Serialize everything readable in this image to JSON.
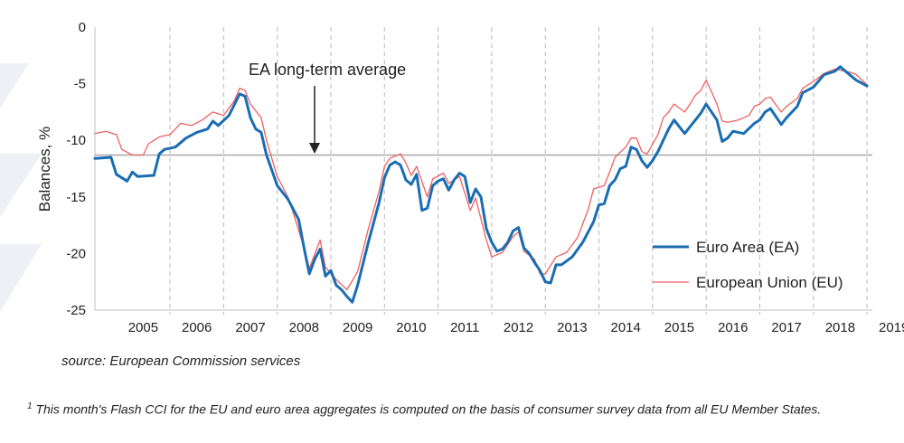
{
  "footer": {
    "source": "source: European Commission services",
    "footnote_mark": "1",
    "footnote": " This month's Flash CCI for the EU and euro area aggregates is computed on the basis of consumer survey data from all EU Member States."
  },
  "chart_data": {
    "type": "line",
    "ylabel": "Balances, %",
    "ylim": [
      -25,
      0
    ],
    "yticks": [
      0,
      -5,
      -10,
      -15,
      -20,
      -25
    ],
    "xlim": [
      2004.6,
      2019.1
    ],
    "years": [
      "2005",
      "2006",
      "2007",
      "2008",
      "2009",
      "2010",
      "2011",
      "2012",
      "2013",
      "2014",
      "2015",
      "2016",
      "2017",
      "2018",
      "2019"
    ],
    "grid": "vertical dashed lines between years",
    "legend_position": "bottom-right",
    "reference_line": {
      "label": "EA long-term average",
      "value": -11.3
    },
    "series": [
      {
        "name": "Euro Area (EA)",
        "color": "#1a6db3",
        "points": [
          [
            2004.6,
            -11.6
          ],
          [
            2004.9,
            -11.5
          ],
          [
            2005.0,
            -13.0
          ],
          [
            2005.2,
            -13.6
          ],
          [
            2005.3,
            -12.8
          ],
          [
            2005.4,
            -13.2
          ],
          [
            2005.7,
            -13.1
          ],
          [
            2005.8,
            -11.2
          ],
          [
            2005.9,
            -10.8
          ],
          [
            2006.1,
            -10.6
          ],
          [
            2006.3,
            -9.8
          ],
          [
            2006.5,
            -9.3
          ],
          [
            2006.7,
            -9.0
          ],
          [
            2006.8,
            -8.3
          ],
          [
            2006.9,
            -8.7
          ],
          [
            2007.1,
            -7.8
          ],
          [
            2007.3,
            -5.9
          ],
          [
            2007.4,
            -6.1
          ],
          [
            2007.5,
            -8.0
          ],
          [
            2007.6,
            -9.0
          ],
          [
            2007.7,
            -9.3
          ],
          [
            2007.8,
            -11.3
          ],
          [
            2008.0,
            -14.0
          ],
          [
            2008.2,
            -15.2
          ],
          [
            2008.4,
            -17.0
          ],
          [
            2008.5,
            -19.5
          ],
          [
            2008.6,
            -21.8
          ],
          [
            2008.7,
            -20.5
          ],
          [
            2008.8,
            -19.6
          ],
          [
            2008.9,
            -22.0
          ],
          [
            2009.0,
            -21.5
          ],
          [
            2009.1,
            -22.8
          ],
          [
            2009.2,
            -23.2
          ],
          [
            2009.3,
            -23.8
          ],
          [
            2009.4,
            -24.3
          ],
          [
            2009.5,
            -22.8
          ],
          [
            2009.7,
            -19.0
          ],
          [
            2009.9,
            -15.5
          ],
          [
            2010.0,
            -13.3
          ],
          [
            2010.1,
            -12.2
          ],
          [
            2010.2,
            -11.9
          ],
          [
            2010.3,
            -12.2
          ],
          [
            2010.4,
            -13.5
          ],
          [
            2010.5,
            -13.9
          ],
          [
            2010.6,
            -13.0
          ],
          [
            2010.7,
            -16.2
          ],
          [
            2010.8,
            -16.0
          ],
          [
            2010.9,
            -14.0
          ],
          [
            2011.0,
            -13.6
          ],
          [
            2011.1,
            -13.4
          ],
          [
            2011.2,
            -14.4
          ],
          [
            2011.3,
            -13.5
          ],
          [
            2011.4,
            -12.9
          ],
          [
            2011.5,
            -13.2
          ],
          [
            2011.6,
            -15.5
          ],
          [
            2011.7,
            -14.3
          ],
          [
            2011.8,
            -15.0
          ],
          [
            2011.9,
            -17.8
          ],
          [
            2012.0,
            -19.0
          ],
          [
            2012.1,
            -19.8
          ],
          [
            2012.2,
            -19.6
          ],
          [
            2012.3,
            -19.0
          ],
          [
            2012.4,
            -18.0
          ],
          [
            2012.5,
            -17.7
          ],
          [
            2012.6,
            -19.5
          ],
          [
            2012.7,
            -20.0
          ],
          [
            2012.8,
            -20.8
          ],
          [
            2012.9,
            -21.5
          ],
          [
            2013.0,
            -22.5
          ],
          [
            2013.1,
            -22.6
          ],
          [
            2013.2,
            -21.0
          ],
          [
            2013.3,
            -21.0
          ],
          [
            2013.5,
            -20.3
          ],
          [
            2013.7,
            -19.0
          ],
          [
            2013.9,
            -17.2
          ],
          [
            2014.0,
            -15.7
          ],
          [
            2014.1,
            -15.6
          ],
          [
            2014.2,
            -14.0
          ],
          [
            2014.3,
            -13.5
          ],
          [
            2014.4,
            -12.5
          ],
          [
            2014.5,
            -12.3
          ],
          [
            2014.6,
            -10.6
          ],
          [
            2014.7,
            -10.8
          ],
          [
            2014.8,
            -11.8
          ],
          [
            2014.9,
            -12.4
          ],
          [
            2015.0,
            -11.8
          ],
          [
            2015.1,
            -11.0
          ],
          [
            2015.3,
            -9.0
          ],
          [
            2015.4,
            -8.2
          ],
          [
            2015.6,
            -9.4
          ],
          [
            2015.7,
            -8.8
          ],
          [
            2015.8,
            -8.2
          ],
          [
            2015.9,
            -7.6
          ],
          [
            2016.0,
            -6.8
          ],
          [
            2016.1,
            -7.5
          ],
          [
            2016.2,
            -8.2
          ],
          [
            2016.3,
            -10.1
          ],
          [
            2016.4,
            -9.8
          ],
          [
            2016.5,
            -9.2
          ],
          [
            2016.7,
            -9.4
          ],
          [
            2016.9,
            -8.5
          ],
          [
            2017.0,
            -8.2
          ],
          [
            2017.1,
            -7.5
          ],
          [
            2017.2,
            -7.2
          ],
          [
            2017.4,
            -8.6
          ],
          [
            2017.5,
            -8.0
          ],
          [
            2017.7,
            -7.0
          ],
          [
            2017.8,
            -5.8
          ],
          [
            2018.0,
            -5.3
          ],
          [
            2018.2,
            -4.2
          ],
          [
            2018.4,
            -3.9
          ],
          [
            2018.5,
            -3.5
          ],
          [
            2018.7,
            -4.3
          ],
          [
            2018.8,
            -4.7
          ],
          [
            2019.0,
            -5.2
          ]
        ]
      },
      {
        "name": "European Union (EU)",
        "color": "#f06060",
        "points": [
          [
            2004.6,
            -9.4
          ],
          [
            2004.8,
            -9.2
          ],
          [
            2005.0,
            -9.5
          ],
          [
            2005.1,
            -10.8
          ],
          [
            2005.3,
            -11.3
          ],
          [
            2005.5,
            -11.3
          ],
          [
            2005.6,
            -10.3
          ],
          [
            2005.8,
            -9.7
          ],
          [
            2006.0,
            -9.5
          ],
          [
            2006.2,
            -8.5
          ],
          [
            2006.4,
            -8.7
          ],
          [
            2006.6,
            -8.2
          ],
          [
            2006.8,
            -7.5
          ],
          [
            2007.0,
            -7.8
          ],
          [
            2007.2,
            -6.5
          ],
          [
            2007.3,
            -5.4
          ],
          [
            2007.4,
            -5.6
          ],
          [
            2007.5,
            -6.8
          ],
          [
            2007.7,
            -8.0
          ],
          [
            2007.8,
            -10.0
          ],
          [
            2008.0,
            -13.2
          ],
          [
            2008.2,
            -15.0
          ],
          [
            2008.3,
            -16.4
          ],
          [
            2008.5,
            -19.5
          ],
          [
            2008.6,
            -21.3
          ],
          [
            2008.8,
            -18.8
          ],
          [
            2008.9,
            -21.2
          ],
          [
            2009.1,
            -22.3
          ],
          [
            2009.3,
            -23.2
          ],
          [
            2009.5,
            -21.6
          ],
          [
            2009.7,
            -17.8
          ],
          [
            2009.9,
            -14.5
          ],
          [
            2010.0,
            -12.3
          ],
          [
            2010.1,
            -11.6
          ],
          [
            2010.3,
            -11.2
          ],
          [
            2010.4,
            -12.0
          ],
          [
            2010.5,
            -13.1
          ],
          [
            2010.6,
            -12.3
          ],
          [
            2010.8,
            -15.0
          ],
          [
            2010.9,
            -13.4
          ],
          [
            2011.1,
            -12.9
          ],
          [
            2011.2,
            -13.8
          ],
          [
            2011.4,
            -13.2
          ],
          [
            2011.6,
            -16.2
          ],
          [
            2011.7,
            -15.1
          ],
          [
            2011.9,
            -18.8
          ],
          [
            2012.0,
            -20.3
          ],
          [
            2012.2,
            -19.9
          ],
          [
            2012.4,
            -18.5
          ],
          [
            2012.5,
            -18.1
          ],
          [
            2012.6,
            -19.8
          ],
          [
            2012.8,
            -20.5
          ],
          [
            2012.9,
            -21.8
          ],
          [
            2013.0,
            -21.8
          ],
          [
            2013.2,
            -20.3
          ],
          [
            2013.4,
            -19.9
          ],
          [
            2013.6,
            -18.6
          ],
          [
            2013.8,
            -16.1
          ],
          [
            2013.9,
            -14.3
          ],
          [
            2014.1,
            -14.0
          ],
          [
            2014.2,
            -12.8
          ],
          [
            2014.3,
            -11.5
          ],
          [
            2014.5,
            -10.6
          ],
          [
            2014.6,
            -9.8
          ],
          [
            2014.7,
            -9.8
          ],
          [
            2014.8,
            -11.0
          ],
          [
            2014.9,
            -11.2
          ],
          [
            2015.1,
            -9.5
          ],
          [
            2015.2,
            -8.0
          ],
          [
            2015.3,
            -7.5
          ],
          [
            2015.4,
            -6.8
          ],
          [
            2015.6,
            -7.5
          ],
          [
            2015.7,
            -6.8
          ],
          [
            2015.8,
            -6.0
          ],
          [
            2015.9,
            -5.6
          ],
          [
            2016.0,
            -4.7
          ],
          [
            2016.1,
            -5.7
          ],
          [
            2016.2,
            -6.8
          ],
          [
            2016.3,
            -8.3
          ],
          [
            2016.4,
            -8.4
          ],
          [
            2016.6,
            -8.2
          ],
          [
            2016.8,
            -7.8
          ],
          [
            2016.9,
            -7.0
          ],
          [
            2017.0,
            -6.8
          ],
          [
            2017.1,
            -6.3
          ],
          [
            2017.2,
            -6.2
          ],
          [
            2017.4,
            -7.5
          ],
          [
            2017.5,
            -7.0
          ],
          [
            2017.7,
            -6.3
          ],
          [
            2017.8,
            -5.4
          ],
          [
            2018.0,
            -4.8
          ],
          [
            2018.2,
            -4.1
          ],
          [
            2018.4,
            -3.7
          ],
          [
            2018.5,
            -3.8
          ],
          [
            2018.7,
            -4.0
          ],
          [
            2018.8,
            -4.2
          ],
          [
            2019.0,
            -5.1
          ]
        ]
      }
    ]
  }
}
